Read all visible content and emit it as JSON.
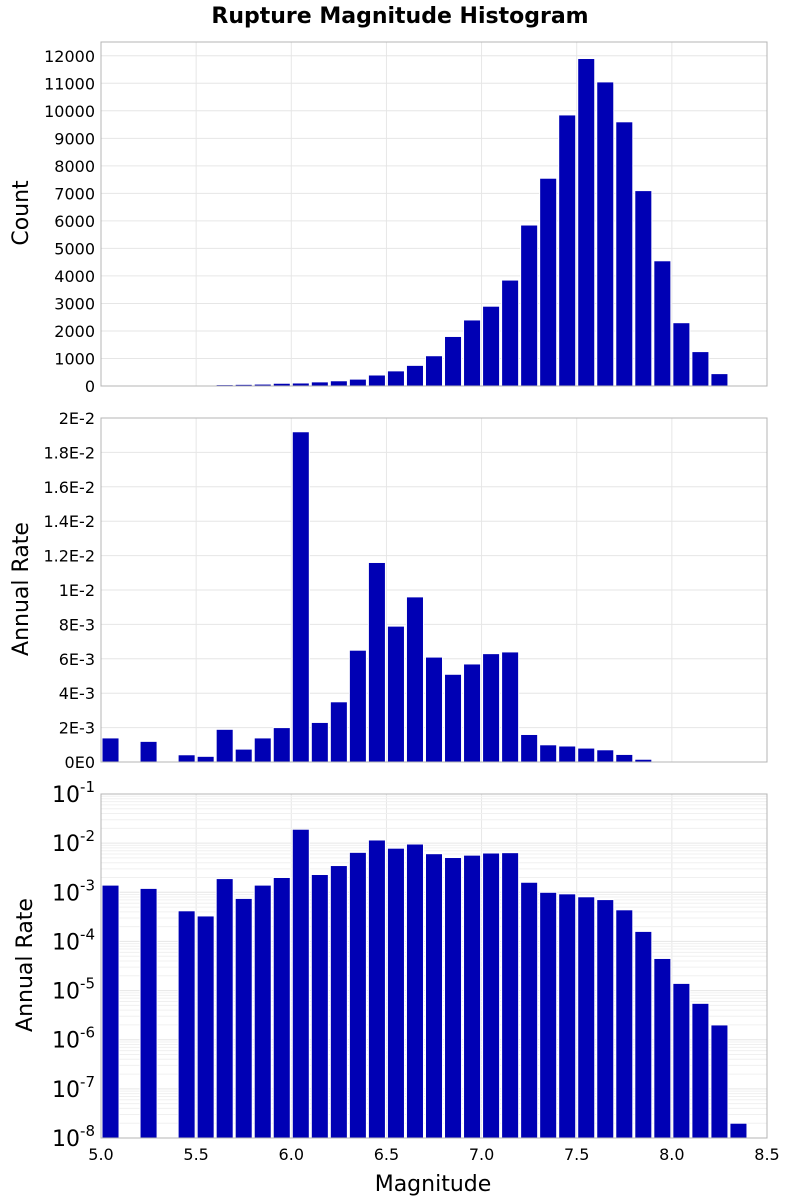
{
  "chart_data": [
    {
      "type": "bar",
      "title": "Rupture Magnitude Histogram",
      "xlabel": "",
      "ylabel": "Count",
      "xlim": [
        5.0,
        8.5
      ],
      "ylim": [
        0,
        12500
      ],
      "y_ticks": [
        0,
        1000,
        2000,
        3000,
        4000,
        5000,
        6000,
        7000,
        8000,
        9000,
        10000,
        11000,
        12000
      ],
      "y_tick_labels": [
        "0",
        "1000",
        "2000",
        "3000",
        "4000",
        "5000",
        "6000",
        "7000",
        "8000",
        "9000",
        "10000",
        "11000",
        "12000"
      ],
      "grid": true,
      "bar_color": "#0000b4",
      "bin_width": 0.1,
      "x": [
        5.05,
        5.15,
        5.25,
        5.35,
        5.45,
        5.55,
        5.65,
        5.75,
        5.85,
        5.95,
        6.05,
        6.15,
        6.25,
        6.35,
        6.45,
        6.55,
        6.65,
        6.75,
        6.85,
        6.95,
        7.05,
        7.15,
        7.25,
        7.35,
        7.45,
        7.55,
        7.65,
        7.75,
        7.85,
        7.95,
        8.05,
        8.15,
        8.25,
        8.35
      ],
      "values": [
        20,
        0,
        20,
        0,
        20,
        30,
        50,
        60,
        70,
        100,
        110,
        150,
        190,
        250,
        400,
        550,
        750,
        1100,
        1800,
        2400,
        2900,
        3850,
        5850,
        7550,
        9850,
        11900,
        11050,
        9600,
        7100,
        4550,
        2300,
        1250,
        450,
        30
      ]
    },
    {
      "type": "bar",
      "title": "",
      "xlabel": "",
      "ylabel": "Annual Rate",
      "xlim": [
        5.0,
        8.5
      ],
      "ylim": [
        0,
        0.02
      ],
      "y_ticks": [
        0,
        0.002,
        0.004,
        0.006,
        0.008,
        0.01,
        0.012,
        0.014,
        0.016,
        0.018,
        0.02
      ],
      "y_tick_labels": [
        "0E0",
        "2E-3",
        "4E-3",
        "6E-3",
        "8E-3",
        "1E-2",
        "1.2E-2",
        "1.4E-2",
        "1.6E-2",
        "1.8E-2",
        "2E-2"
      ],
      "grid": true,
      "bar_color": "#0000b4",
      "bin_width": 0.1,
      "x": [
        5.05,
        5.15,
        5.25,
        5.35,
        5.45,
        5.55,
        5.65,
        5.75,
        5.85,
        5.95,
        6.05,
        6.15,
        6.25,
        6.35,
        6.45,
        6.55,
        6.65,
        6.75,
        6.85,
        6.95,
        7.05,
        7.15,
        7.25,
        7.35,
        7.45,
        7.55,
        7.65,
        7.75,
        7.85,
        7.95,
        8.05,
        8.15,
        8.25,
        8.35
      ],
      "values": [
        0.0014,
        0,
        0.0012,
        0,
        0.00042,
        0.00033,
        0.0019,
        0.00075,
        0.0014,
        0.002,
        0.0192,
        0.0023,
        0.0035,
        0.0065,
        0.0116,
        0.0079,
        0.0096,
        0.0061,
        0.0051,
        0.0057,
        0.0063,
        0.0064,
        0.0016,
        0.001,
        0.00093,
        0.00081,
        0.00071,
        0.00044,
        0.00016,
        4.5e-05,
        1.4e-05,
        5.5e-06,
        2e-06,
        2e-08
      ]
    },
    {
      "type": "bar",
      "title": "",
      "xlabel": "Magnitude",
      "ylabel": "Annual Rate",
      "xlim": [
        5.0,
        8.5
      ],
      "ylim": [
        1e-08,
        0.1
      ],
      "y_scale": "log",
      "y_ticks": [
        1e-08,
        1e-07,
        1e-06,
        1e-05,
        0.0001,
        0.001,
        0.01,
        0.1
      ],
      "y_tick_labels": [
        {
          "base": "10",
          "exp": "-8"
        },
        {
          "base": "10",
          "exp": "-7"
        },
        {
          "base": "10",
          "exp": "-6"
        },
        {
          "base": "10",
          "exp": "-5"
        },
        {
          "base": "10",
          "exp": "-4"
        },
        {
          "base": "10",
          "exp": "-3"
        },
        {
          "base": "10",
          "exp": "-2"
        },
        {
          "base": "10",
          "exp": "-1"
        }
      ],
      "x_ticks": [
        5.0,
        5.5,
        6.0,
        6.5,
        7.0,
        7.5,
        8.0,
        8.5
      ],
      "x_tick_labels": [
        "5.0",
        "5.5",
        "6.0",
        "6.5",
        "7.0",
        "7.5",
        "8.0",
        "8.5"
      ],
      "grid": true,
      "bar_color": "#0000b4",
      "bin_width": 0.1,
      "x": [
        5.05,
        5.15,
        5.25,
        5.35,
        5.45,
        5.55,
        5.65,
        5.75,
        5.85,
        5.95,
        6.05,
        6.15,
        6.25,
        6.35,
        6.45,
        6.55,
        6.65,
        6.75,
        6.85,
        6.95,
        7.05,
        7.15,
        7.25,
        7.35,
        7.45,
        7.55,
        7.65,
        7.75,
        7.85,
        7.95,
        8.05,
        8.15,
        8.25,
        8.35
      ],
      "values": [
        0.0014,
        0,
        0.0012,
        0,
        0.00042,
        0.00033,
        0.0019,
        0.00075,
        0.0014,
        0.002,
        0.0192,
        0.0023,
        0.0035,
        0.0065,
        0.0116,
        0.0079,
        0.0096,
        0.0061,
        0.0051,
        0.0057,
        0.0063,
        0.0064,
        0.0016,
        0.001,
        0.00093,
        0.00081,
        0.00071,
        0.00044,
        0.00016,
        4.5e-05,
        1.4e-05,
        5.5e-06,
        2e-06,
        2e-08
      ]
    }
  ]
}
